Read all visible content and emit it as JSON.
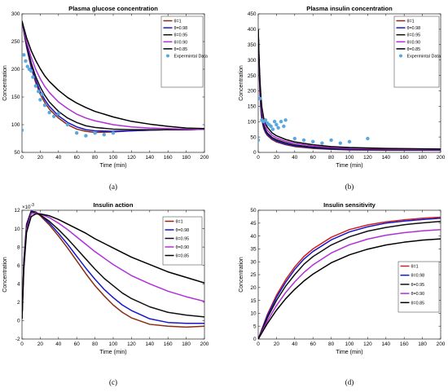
{
  "chart_data": [
    {
      "panel": "a",
      "type": "line",
      "title": "Plasma glucose concentration",
      "xlabel": "Time (min)",
      "ylabel": "Concentration",
      "caption": "(a)",
      "xlim": [
        0,
        200
      ],
      "ylim": [
        50,
        300
      ],
      "xticks": [
        0,
        20,
        40,
        60,
        80,
        100,
        120,
        140,
        160,
        180,
        200
      ],
      "yticks": [
        50,
        100,
        150,
        200,
        250,
        300
      ],
      "legend_position": "top-right",
      "grid": false,
      "series": [
        {
          "name": "θ=1",
          "color": "#8B2C12",
          "x": [
            0,
            5,
            10,
            15,
            20,
            25,
            30,
            40,
            50,
            60,
            70,
            80,
            100,
            120,
            140,
            160,
            180,
            200
          ],
          "y": [
            287,
            240,
            203,
            176,
            155,
            140,
            128,
            112,
            100,
            92,
            88,
            86,
            87,
            89,
            90,
            91,
            91,
            92
          ]
        },
        {
          "name": "θ=0.98",
          "color": "#1818C8",
          "x": [
            0,
            5,
            10,
            15,
            20,
            25,
            30,
            40,
            50,
            60,
            70,
            80,
            100,
            120,
            140,
            160,
            180,
            200
          ],
          "y": [
            287,
            242,
            207,
            181,
            160,
            145,
            133,
            116,
            104,
            96,
            91,
            89,
            88,
            89,
            90,
            91,
            91,
            92
          ]
        },
        {
          "name": "θ=0.95",
          "color": "#101010",
          "x": [
            0,
            5,
            10,
            15,
            20,
            25,
            30,
            40,
            50,
            60,
            70,
            80,
            100,
            120,
            140,
            160,
            180,
            200
          ],
          "y": [
            287,
            245,
            212,
            187,
            168,
            153,
            141,
            124,
            112,
            104,
            98,
            95,
            92,
            91,
            91,
            91,
            91,
            92
          ]
        },
        {
          "name": "θ=0.90",
          "color": "#B030D8",
          "x": [
            0,
            5,
            10,
            15,
            20,
            25,
            30,
            40,
            50,
            60,
            70,
            80,
            100,
            120,
            140,
            160,
            180,
            200
          ],
          "y": [
            287,
            250,
            222,
            200,
            183,
            169,
            158,
            141,
            129,
            119,
            112,
            107,
            100,
            96,
            94,
            93,
            92,
            92
          ]
        },
        {
          "name": "θ=0.85",
          "color": "#000000",
          "x": [
            0,
            5,
            10,
            15,
            20,
            25,
            30,
            40,
            50,
            60,
            70,
            80,
            100,
            120,
            140,
            160,
            180,
            200
          ],
          "y": [
            287,
            257,
            234,
            216,
            201,
            188,
            178,
            162,
            149,
            139,
            131,
            124,
            114,
            106,
            101,
            97,
            94,
            93
          ]
        },
        {
          "name": "Expermintal Data",
          "color": "#5AA8E0",
          "kind": "scatter",
          "x": [
            0,
            2,
            4,
            6,
            8,
            10,
            12,
            15,
            18,
            20,
            22,
            25,
            30,
            35,
            40,
            50,
            60,
            70,
            80,
            90,
            100
          ],
          "y": [
            90,
            226,
            215,
            205,
            200,
            197,
            186,
            170,
            160,
            145,
            155,
            135,
            122,
            115,
            120,
            100,
            85,
            80,
            85,
            82,
            85
          ]
        }
      ]
    },
    {
      "panel": "b",
      "type": "line",
      "title": "Plasma insulin concentration",
      "xlabel": "Time (min)",
      "ylabel": "Concentration",
      "caption": "(b)",
      "xlim": [
        0,
        200
      ],
      "ylim": [
        0,
        450
      ],
      "xticks": [
        0,
        20,
        40,
        60,
        80,
        100,
        120,
        140,
        160,
        180,
        200
      ],
      "yticks": [
        0,
        50,
        100,
        150,
        200,
        250,
        300,
        350,
        400,
        450
      ],
      "legend_position": "top-right",
      "grid": false,
      "series": [
        {
          "name": "θ=1",
          "color": "#8B2C12",
          "x": [
            0,
            1,
            2,
            3,
            4,
            6,
            8,
            10,
            15,
            20,
            30,
            40,
            60,
            80,
            100,
            140,
            200
          ],
          "y": [
            400,
            270,
            185,
            135,
            105,
            78,
            64,
            55,
            42,
            34,
            25,
            19,
            13,
            10,
            8,
            7,
            7
          ]
        },
        {
          "name": "θ=0.98",
          "color": "#1818C8",
          "x": [
            0,
            1,
            2,
            3,
            4,
            6,
            8,
            10,
            15,
            20,
            30,
            40,
            60,
            80,
            100,
            140,
            200
          ],
          "y": [
            400,
            275,
            190,
            140,
            110,
            82,
            67,
            58,
            45,
            37,
            27,
            21,
            15,
            11,
            9,
            8,
            7
          ]
        },
        {
          "name": "θ=0.95",
          "color": "#101010",
          "x": [
            0,
            1,
            2,
            3,
            4,
            6,
            8,
            10,
            15,
            20,
            30,
            40,
            60,
            80,
            100,
            140,
            200
          ],
          "y": [
            400,
            282,
            200,
            150,
            118,
            89,
            73,
            63,
            49,
            41,
            31,
            24,
            17,
            13,
            11,
            9,
            8
          ]
        },
        {
          "name": "θ=0.90",
          "color": "#B030D8",
          "x": [
            0,
            1,
            2,
            3,
            4,
            6,
            8,
            10,
            15,
            20,
            30,
            40,
            60,
            80,
            100,
            140,
            200
          ],
          "y": [
            400,
            292,
            215,
            165,
            132,
            100,
            83,
            72,
            56,
            47,
            36,
            29,
            21,
            16,
            13,
            11,
            9
          ]
        },
        {
          "name": "θ=0.85",
          "color": "#000000",
          "x": [
            0,
            1,
            2,
            3,
            4,
            6,
            8,
            10,
            15,
            20,
            30,
            40,
            60,
            80,
            100,
            140,
            200
          ],
          "y": [
            400,
            300,
            228,
            180,
            146,
            112,
            94,
            82,
            64,
            54,
            42,
            34,
            25,
            19,
            16,
            13,
            11
          ]
        },
        {
          "name": "Expermintal Data",
          "color": "#5AA8E0",
          "kind": "scatter",
          "x": [
            0,
            2,
            4,
            6,
            8,
            10,
            12,
            14,
            16,
            18,
            20,
            22,
            25,
            28,
            30,
            40,
            50,
            60,
            70,
            80,
            90,
            100,
            120
          ],
          "y": [
            40,
            175,
            105,
            100,
            105,
            95,
            90,
            85,
            75,
            100,
            90,
            80,
            100,
            85,
            105,
            45,
            40,
            35,
            30,
            40,
            30,
            35,
            45
          ]
        }
      ]
    },
    {
      "panel": "c",
      "type": "line",
      "title": "Insulin action",
      "xlabel": "Time (min)",
      "ylabel": "Concentration",
      "caption": "(c)",
      "y_multiplier": "×10",
      "y_multiplier_exp": "-3",
      "xlim": [
        0,
        200
      ],
      "ylim": [
        -2,
        12
      ],
      "xticks": [
        0,
        20,
        40,
        60,
        80,
        100,
        120,
        140,
        160,
        180,
        200
      ],
      "yticks": [
        -2,
        0,
        2,
        4,
        6,
        8,
        10,
        12
      ],
      "legend_position": "top-right",
      "grid": false,
      "series": [
        {
          "name": "θ=1",
          "color": "#8B2C12",
          "x": [
            0,
            2,
            5,
            10,
            15,
            20,
            30,
            40,
            50,
            60,
            70,
            80,
            90,
            100,
            110,
            120,
            140,
            160,
            180,
            200
          ],
          "y": [
            0.2,
            6.5,
            10.5,
            11.9,
            11.8,
            11.4,
            10.4,
            9.2,
            7.9,
            6.5,
            5.1,
            3.8,
            2.7,
            1.7,
            0.9,
            0.3,
            -0.4,
            -0.6,
            -0.7,
            -0.6
          ]
        },
        {
          "name": "θ=0.98",
          "color": "#1818C8",
          "x": [
            0,
            2,
            5,
            10,
            15,
            20,
            30,
            40,
            50,
            60,
            70,
            80,
            90,
            100,
            110,
            120,
            140,
            160,
            180,
            200
          ],
          "y": [
            0.2,
            6.4,
            10.4,
            11.9,
            11.8,
            11.5,
            10.6,
            9.5,
            8.3,
            7.0,
            5.7,
            4.5,
            3.4,
            2.5,
            1.7,
            1.1,
            0.2,
            -0.2,
            -0.3,
            -0.3
          ]
        },
        {
          "name": "θ=0.95",
          "color": "#101010",
          "x": [
            0,
            2,
            5,
            10,
            15,
            20,
            30,
            40,
            50,
            60,
            70,
            80,
            90,
            100,
            110,
            120,
            140,
            160,
            180,
            200
          ],
          "y": [
            0.2,
            6.2,
            10.2,
            11.8,
            11.8,
            11.5,
            10.8,
            9.9,
            8.9,
            7.8,
            6.7,
            5.6,
            4.6,
            3.8,
            3.0,
            2.4,
            1.5,
            0.9,
            0.6,
            0.4
          ]
        },
        {
          "name": "θ=0.90",
          "color": "#B030D8",
          "x": [
            0,
            2,
            5,
            10,
            15,
            20,
            30,
            40,
            50,
            60,
            70,
            80,
            90,
            100,
            110,
            120,
            140,
            160,
            180,
            200
          ],
          "y": [
            0.2,
            5.9,
            9.9,
            11.6,
            11.7,
            11.6,
            11.2,
            10.6,
            9.9,
            9.1,
            8.3,
            7.5,
            6.8,
            6.1,
            5.5,
            4.9,
            4.0,
            3.2,
            2.6,
            2.1
          ]
        },
        {
          "name": "θ=0.85",
          "color": "#000000",
          "x": [
            0,
            2,
            5,
            10,
            15,
            20,
            30,
            40,
            50,
            60,
            70,
            80,
            90,
            100,
            110,
            120,
            140,
            160,
            180,
            200
          ],
          "y": [
            0.2,
            5.6,
            9.6,
            11.3,
            11.6,
            11.6,
            11.4,
            11.0,
            10.5,
            10.0,
            9.5,
            8.9,
            8.4,
            7.9,
            7.4,
            6.9,
            6.1,
            5.3,
            4.7,
            4.1
          ]
        }
      ]
    },
    {
      "panel": "d",
      "type": "line",
      "title": "Insulin sensitivity",
      "xlabel": "Time (min)",
      "ylabel": "Concentration",
      "caption": "(d)",
      "xlim": [
        0,
        200
      ],
      "ylim": [
        0,
        50
      ],
      "xticks": [
        0,
        20,
        40,
        60,
        80,
        100,
        120,
        140,
        160,
        180,
        200
      ],
      "yticks": [
        0,
        5,
        10,
        15,
        20,
        25,
        30,
        35,
        40,
        45,
        50
      ],
      "legend_position": "bottom-right",
      "grid": false,
      "series": [
        {
          "name": "θ=1",
          "color": "#D02020",
          "x": [
            0,
            10,
            20,
            30,
            40,
            50,
            60,
            80,
            100,
            120,
            140,
            160,
            180,
            200
          ],
          "y": [
            0,
            9.5,
            17,
            23,
            28,
            32,
            35,
            39.5,
            42.5,
            44.3,
            45.5,
            46.3,
            46.9,
            47.3
          ]
        },
        {
          "name": "θ=0.98",
          "color": "#1818C8",
          "x": [
            0,
            10,
            20,
            30,
            40,
            50,
            60,
            80,
            100,
            120,
            140,
            160,
            180,
            200
          ],
          "y": [
            0,
            9,
            16.2,
            22,
            27,
            31,
            34,
            38.5,
            41.6,
            43.6,
            45,
            45.8,
            46.4,
            46.9
          ]
        },
        {
          "name": "θ=0.95",
          "color": "#101010",
          "x": [
            0,
            10,
            20,
            30,
            40,
            50,
            60,
            80,
            100,
            120,
            140,
            160,
            180,
            200
          ],
          "y": [
            0,
            8.2,
            15,
            20.5,
            25,
            29,
            32,
            36.5,
            39.7,
            41.9,
            43.3,
            44.4,
            45.1,
            45.7
          ]
        },
        {
          "name": "θ=0.90",
          "color": "#B030D8",
          "x": [
            0,
            10,
            20,
            30,
            40,
            50,
            60,
            80,
            100,
            120,
            140,
            160,
            180,
            200
          ],
          "y": [
            0,
            7,
            13,
            18,
            22.2,
            25.8,
            28.8,
            33.4,
            36.6,
            38.8,
            40.3,
            41.3,
            42,
            42.5
          ]
        },
        {
          "name": "θ=0.85",
          "color": "#000000",
          "x": [
            0,
            10,
            20,
            30,
            40,
            50,
            60,
            80,
            100,
            120,
            140,
            160,
            180,
            200
          ],
          "y": [
            0,
            6,
            11.2,
            15.6,
            19.3,
            22.5,
            25.2,
            29.6,
            32.7,
            34.9,
            36.5,
            37.6,
            38.4,
            38.9
          ]
        }
      ]
    }
  ]
}
